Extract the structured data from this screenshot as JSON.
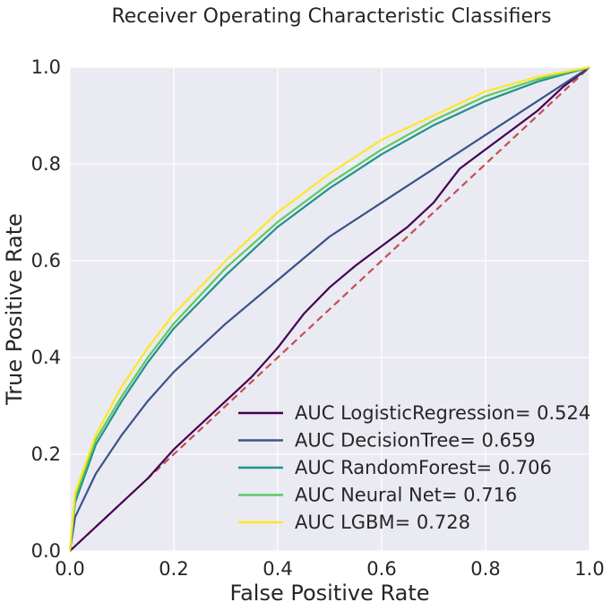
{
  "chart_data": {
    "type": "line",
    "title": "Receiver Operating Characteristic Classifiers",
    "xlabel": "False Positive Rate",
    "ylabel": "True Positive Rate",
    "xlim": [
      0.0,
      1.0
    ],
    "ylim": [
      0.0,
      1.0
    ],
    "xticks": [
      "0.0",
      "0.2",
      "0.4",
      "0.6",
      "0.8",
      "1.0"
    ],
    "yticks": [
      "0.0",
      "0.2",
      "0.4",
      "0.6",
      "0.8",
      "1.0"
    ],
    "grid": true,
    "legend_position": "lower-right",
    "background_color": "#eaeaf2",
    "grid_color": "#ffffff",
    "diagonal": {
      "color": "#c44e52",
      "style": "dashed",
      "points": [
        [
          0,
          0
        ],
        [
          1,
          1
        ]
      ]
    },
    "series": [
      {
        "name": "AUC LogisticRegression= 0.524",
        "color": "#440154",
        "points": [
          [
            0,
            0
          ],
          [
            0.05,
            0.05
          ],
          [
            0.1,
            0.1
          ],
          [
            0.15,
            0.15
          ],
          [
            0.2,
            0.21
          ],
          [
            0.25,
            0.26
          ],
          [
            0.3,
            0.31
          ],
          [
            0.35,
            0.36
          ],
          [
            0.4,
            0.42
          ],
          [
            0.45,
            0.49
          ],
          [
            0.5,
            0.545
          ],
          [
            0.55,
            0.59
          ],
          [
            0.6,
            0.63
          ],
          [
            0.65,
            0.67
          ],
          [
            0.7,
            0.72
          ],
          [
            0.75,
            0.79
          ],
          [
            0.8,
            0.83
          ],
          [
            0.85,
            0.87
          ],
          [
            0.9,
            0.91
          ],
          [
            0.95,
            0.96
          ],
          [
            1.0,
            1.0
          ]
        ]
      },
      {
        "name": "AUC DecisionTree= 0.659",
        "color": "#3b528b",
        "points": [
          [
            0,
            0
          ],
          [
            0.01,
            0.07
          ],
          [
            0.05,
            0.16
          ],
          [
            0.1,
            0.24
          ],
          [
            0.15,
            0.31
          ],
          [
            0.2,
            0.37
          ],
          [
            0.3,
            0.47
          ],
          [
            0.4,
            0.56
          ],
          [
            0.5,
            0.65
          ],
          [
            0.6,
            0.72
          ],
          [
            0.7,
            0.79
          ],
          [
            0.8,
            0.86
          ],
          [
            0.9,
            0.93
          ],
          [
            1.0,
            1.0
          ]
        ]
      },
      {
        "name": "AUC RandomForest= 0.706",
        "color": "#21918c",
        "points": [
          [
            0,
            0
          ],
          [
            0.01,
            0.1
          ],
          [
            0.05,
            0.22
          ],
          [
            0.1,
            0.31
          ],
          [
            0.15,
            0.39
          ],
          [
            0.2,
            0.46
          ],
          [
            0.3,
            0.57
          ],
          [
            0.4,
            0.67
          ],
          [
            0.5,
            0.75
          ],
          [
            0.6,
            0.82
          ],
          [
            0.7,
            0.88
          ],
          [
            0.8,
            0.93
          ],
          [
            0.9,
            0.97
          ],
          [
            1.0,
            1.0
          ]
        ]
      },
      {
        "name": "AUC Neural Net= 0.716",
        "color": "#5ec962",
        "points": [
          [
            0,
            0
          ],
          [
            0.01,
            0.11
          ],
          [
            0.05,
            0.23
          ],
          [
            0.1,
            0.32
          ],
          [
            0.15,
            0.4
          ],
          [
            0.2,
            0.47
          ],
          [
            0.3,
            0.585
          ],
          [
            0.4,
            0.68
          ],
          [
            0.5,
            0.76
          ],
          [
            0.6,
            0.83
          ],
          [
            0.7,
            0.89
          ],
          [
            0.8,
            0.94
          ],
          [
            0.9,
            0.975
          ],
          [
            1.0,
            1.0
          ]
        ]
      },
      {
        "name": "AUC LGBM= 0.728",
        "color": "#fde725",
        "points": [
          [
            0,
            0
          ],
          [
            0.01,
            0.12
          ],
          [
            0.05,
            0.24
          ],
          [
            0.1,
            0.34
          ],
          [
            0.15,
            0.42
          ],
          [
            0.2,
            0.49
          ],
          [
            0.3,
            0.6
          ],
          [
            0.4,
            0.7
          ],
          [
            0.5,
            0.78
          ],
          [
            0.6,
            0.85
          ],
          [
            0.7,
            0.9
          ],
          [
            0.8,
            0.95
          ],
          [
            0.9,
            0.98
          ],
          [
            1.0,
            1.0
          ]
        ]
      }
    ]
  }
}
